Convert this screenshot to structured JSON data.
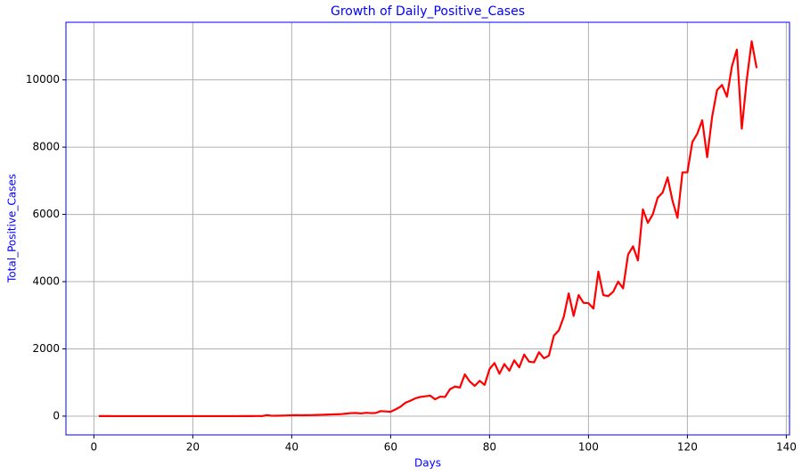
{
  "chart_data": {
    "type": "line",
    "title": "Growth of Daily_Positive_Cases",
    "xlabel": "Days",
    "ylabel": "Total_Positive_Cases",
    "x": [
      1,
      2,
      3,
      4,
      5,
      6,
      7,
      8,
      9,
      10,
      11,
      12,
      13,
      14,
      15,
      16,
      17,
      18,
      19,
      20,
      21,
      22,
      23,
      24,
      25,
      26,
      27,
      28,
      29,
      30,
      31,
      32,
      33,
      34,
      35,
      36,
      37,
      38,
      39,
      40,
      41,
      42,
      43,
      44,
      45,
      46,
      47,
      48,
      49,
      50,
      51,
      52,
      53,
      54,
      55,
      56,
      57,
      58,
      59,
      60,
      61,
      62,
      63,
      64,
      65,
      66,
      67,
      68,
      69,
      70,
      71,
      72,
      73,
      74,
      75,
      76,
      77,
      78,
      79,
      80,
      81,
      82,
      83,
      84,
      85,
      86,
      87,
      88,
      89,
      90,
      91,
      92,
      93,
      94,
      95,
      96,
      97,
      98,
      99,
      100,
      101,
      102,
      103,
      104,
      105,
      106,
      107,
      108,
      109,
      110,
      111,
      112,
      113,
      114,
      115,
      116,
      117,
      118,
      119,
      120,
      121,
      122,
      123,
      124,
      125,
      126,
      127,
      128,
      129,
      130,
      131,
      132,
      133,
      134
    ],
    "series": [
      {
        "name": "Total_Positive_Cases",
        "color": "#ff0000",
        "values": [
          1,
          1,
          1,
          0,
          0,
          0,
          0,
          0,
          0,
          0,
          0,
          0,
          0,
          0,
          0,
          0,
          0,
          0,
          0,
          0,
          0,
          0,
          0,
          0,
          0,
          0,
          0,
          0,
          0,
          1,
          1,
          2,
          3,
          2,
          30,
          10,
          12,
          15,
          20,
          25,
          30,
          25,
          28,
          30,
          35,
          40,
          45,
          50,
          55,
          60,
          75,
          90,
          95,
          80,
          100,
          90,
          95,
          150,
          140,
          130,
          200,
          280,
          400,
          460,
          530,
          570,
          590,
          610,
          500,
          580,
          570,
          800,
          880,
          850,
          1240,
          1030,
          900,
          1050,
          930,
          1400,
          1580,
          1260,
          1550,
          1350,
          1660,
          1450,
          1830,
          1620,
          1600,
          1900,
          1720,
          1800,
          2390,
          2550,
          2950,
          3650,
          2980,
          3600,
          3370,
          3360,
          3200,
          4300,
          3600,
          3570,
          3700,
          4000,
          3800,
          4800,
          5050,
          4630,
          6150,
          5750,
          6000,
          6500,
          6650,
          7100,
          6400,
          5900,
          7250,
          7250,
          8150,
          8400,
          8800,
          7700,
          8900,
          9700,
          9850,
          9500,
          10400,
          10900,
          8550,
          10000,
          11150,
          10350
        ]
      }
    ],
    "xlim": [
      -5.65,
      140.65
    ],
    "xticks": [
      0,
      20,
      40,
      60,
      80,
      100,
      120,
      140
    ],
    "ylim": [
      -558,
      11714
    ],
    "yticks": [
      0,
      2000,
      4000,
      6000,
      8000,
      10000
    ],
    "grid": true
  }
}
